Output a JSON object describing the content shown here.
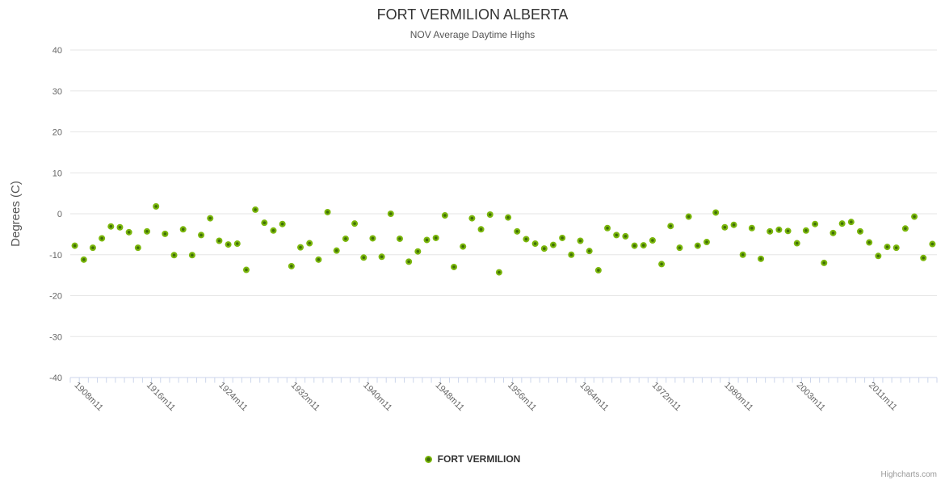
{
  "header": {
    "title": "FORT VERMILION ALBERTA",
    "subtitle": "NOV Average Daytime Highs"
  },
  "legend": {
    "label": "FORT VERMILION"
  },
  "credits": {
    "label": "Highcharts.com"
  },
  "colors": {
    "background": "#ffffff",
    "title": "#333333",
    "subtitle": "#555555",
    "grid": "#e6e6e6",
    "axis_line": "#ccd6eb",
    "axis_label": "#666666",
    "y_axis_title": "#555555",
    "marker": "#7bb70c",
    "marker_center": "#3f6e06",
    "legend_text": "#333333",
    "credits_text": "#999999"
  },
  "chart_data": {
    "type": "scatter",
    "title": "FORT VERMILION ALBERTA",
    "subtitle": "NOV Average Daytime Highs",
    "xlabel": "",
    "ylabel": "Degrees (C)",
    "ylim": [
      -40,
      40
    ],
    "ytick_step": 10,
    "ytick_labels": [
      "40",
      "30",
      "20",
      "10",
      "0",
      "-10",
      "-20",
      "-30",
      "-40"
    ],
    "grid": "horizontal",
    "legend_position": "bottom",
    "num_categories": 96,
    "x_tick_labels": [
      {
        "index": 0,
        "label": "1908m11"
      },
      {
        "index": 8,
        "label": "1916m11"
      },
      {
        "index": 16,
        "label": "1924m11"
      },
      {
        "index": 24,
        "label": "1932m11"
      },
      {
        "index": 32,
        "label": "1940m11"
      },
      {
        "index": 40,
        "label": "1948m11"
      },
      {
        "index": 48,
        "label": "1956m11"
      },
      {
        "index": 56,
        "label": "1964m11"
      },
      {
        "index": 64,
        "label": "1972m11"
      },
      {
        "index": 72,
        "label": "1980m11"
      },
      {
        "index": 80,
        "label": "2003m11"
      },
      {
        "index": 88,
        "label": "2011m11"
      }
    ],
    "series": [
      {
        "name": "FORT VERMILION",
        "color": "#7bb70c",
        "values": [
          -7.8,
          -11.2,
          -8.3,
          -6,
          -3.1,
          -3.3,
          -4.5,
          -8.3,
          -4.3,
          1.8,
          -4.9,
          -10.1,
          -3.8,
          -10.1,
          -5.2,
          -1.1,
          -6.6,
          -7.5,
          -7.3,
          -13.7,
          1,
          -2.2,
          -4.1,
          -2.5,
          -12.8,
          -8.2,
          -7.2,
          -11.2,
          0.4,
          -9,
          -6.1,
          -2.4,
          -10.7,
          -6,
          -10.5,
          0,
          -6.1,
          -11.7,
          -9.2,
          -6.4,
          -5.9,
          -0.4,
          -13,
          -8,
          -1.1,
          -3.8,
          -0.2,
          -14.3,
          -0.9,
          -4.3,
          -6.2,
          -7.3,
          -8.5,
          -7.6,
          -5.9,
          -10,
          -6.6,
          -9.1,
          -13.8,
          -3.5,
          -5.2,
          -5.5,
          -7.8,
          -7.7,
          -6.5,
          -12.3,
          -3,
          -8.3,
          -0.7,
          -7.8,
          -6.9,
          0.3,
          -3.3,
          -2.7,
          -10,
          -3.5,
          -11,
          -4.3,
          -3.9,
          -4.2,
          -7.2,
          -4.1,
          -2.5,
          -12,
          -4.7,
          -2.4,
          -2,
          -4.3,
          -7,
          -10.3,
          -8.1,
          -8.3,
          -3.6,
          -0.7,
          -10.8,
          -7.4
        ]
      }
    ]
  }
}
